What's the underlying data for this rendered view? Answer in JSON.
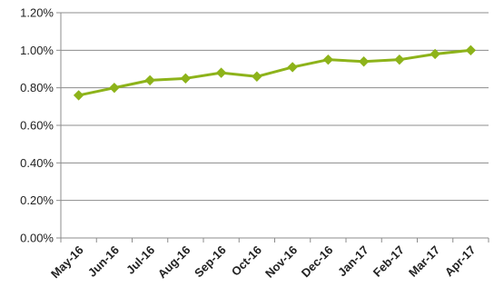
{
  "chart_data": {
    "type": "line",
    "title": "",
    "xlabel": "",
    "ylabel": "",
    "categories": [
      "May-16",
      "Jun-16",
      "Jul-16",
      "Aug-16",
      "Sep-16",
      "Oct-16",
      "Nov-16",
      "Dec-16",
      "Jan-17",
      "Feb-17",
      "Mar-17",
      "Apr-17"
    ],
    "series": [
      {
        "values": [
          0.76,
          0.8,
          0.84,
          0.85,
          0.88,
          0.86,
          0.91,
          0.95,
          0.94,
          0.95,
          0.98,
          1.0
        ],
        "color": "#8db31a",
        "marker": "diamond"
      }
    ],
    "ylim": [
      0,
      1.2
    ],
    "y_ticks": [
      0,
      0.2,
      0.4,
      0.6,
      0.8,
      1.0,
      1.2
    ],
    "y_tick_labels": [
      "0.00%",
      "0.20%",
      "0.40%",
      "0.60%",
      "0.80%",
      "1.00%",
      "1.20%"
    ],
    "grid": true,
    "legend": "none"
  }
}
